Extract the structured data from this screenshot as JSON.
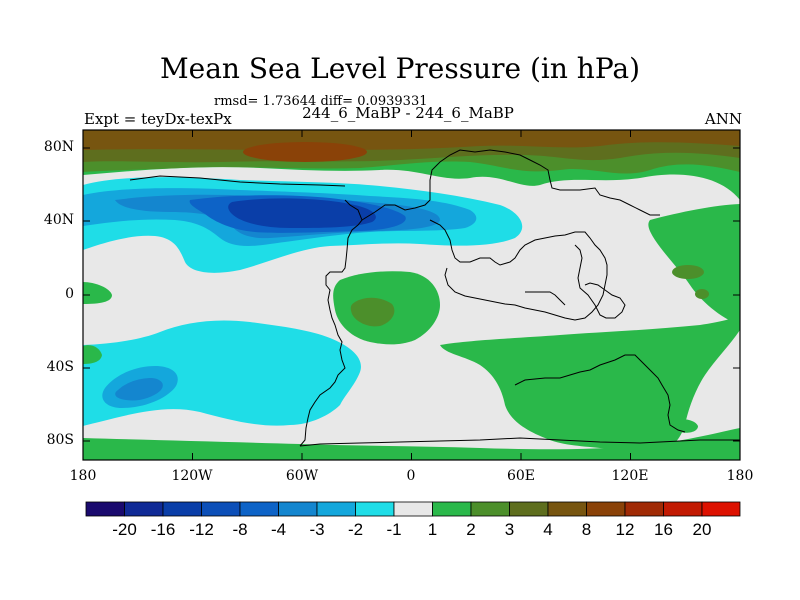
{
  "title": "Mean Sea Level Pressure (in hPa)",
  "stats": "rmsd= 1.73644 diff= 0.0939331",
  "expt_label": "Expt = teyDx-texPx",
  "case_label": "244_6_MaBP - 244_6_MaBP",
  "season_label": "ANN",
  "y_ticks": [
    "80N",
    "40N",
    "0",
    "40S",
    "80S"
  ],
  "x_ticks": [
    "180",
    "120W",
    "60W",
    "0",
    "60E",
    "120E",
    "180"
  ],
  "colorbar": {
    "labels": [
      "-20",
      "-16",
      "-12",
      "-8",
      "-4",
      "-3",
      "-2",
      "-1",
      "1",
      "2",
      "3",
      "4",
      "8",
      "12",
      "16",
      "20"
    ],
    "colors": [
      "#1a0a6e",
      "#102a96",
      "#0a3ea8",
      "#0c4fb8",
      "#0d63c7",
      "#1486cf",
      "#14a7dc",
      "#1fdde7",
      "#e8e8e8",
      "#2ab84a",
      "#4c8f2b",
      "#5e6e1e",
      "#775510",
      "#8a4208",
      "#a02a05",
      "#c21a02",
      "#dd1100"
    ]
  },
  "colors": {
    "background": "#e8e8e8",
    "neg_light": "#1fdde7",
    "neg_mid": "#14a7dc",
    "neg_strong": "#1486cf",
    "neg_dark": "#0d63c7",
    "neg_darker": "#0a3ea8",
    "pos_light": "#2ab84a",
    "pos_mid": "#4c8f2b",
    "pos_strong": "#5e6e1e",
    "pos_dark": "#775510",
    "pos_darker": "#8a4208",
    "pos_red": "#a02a05"
  }
}
